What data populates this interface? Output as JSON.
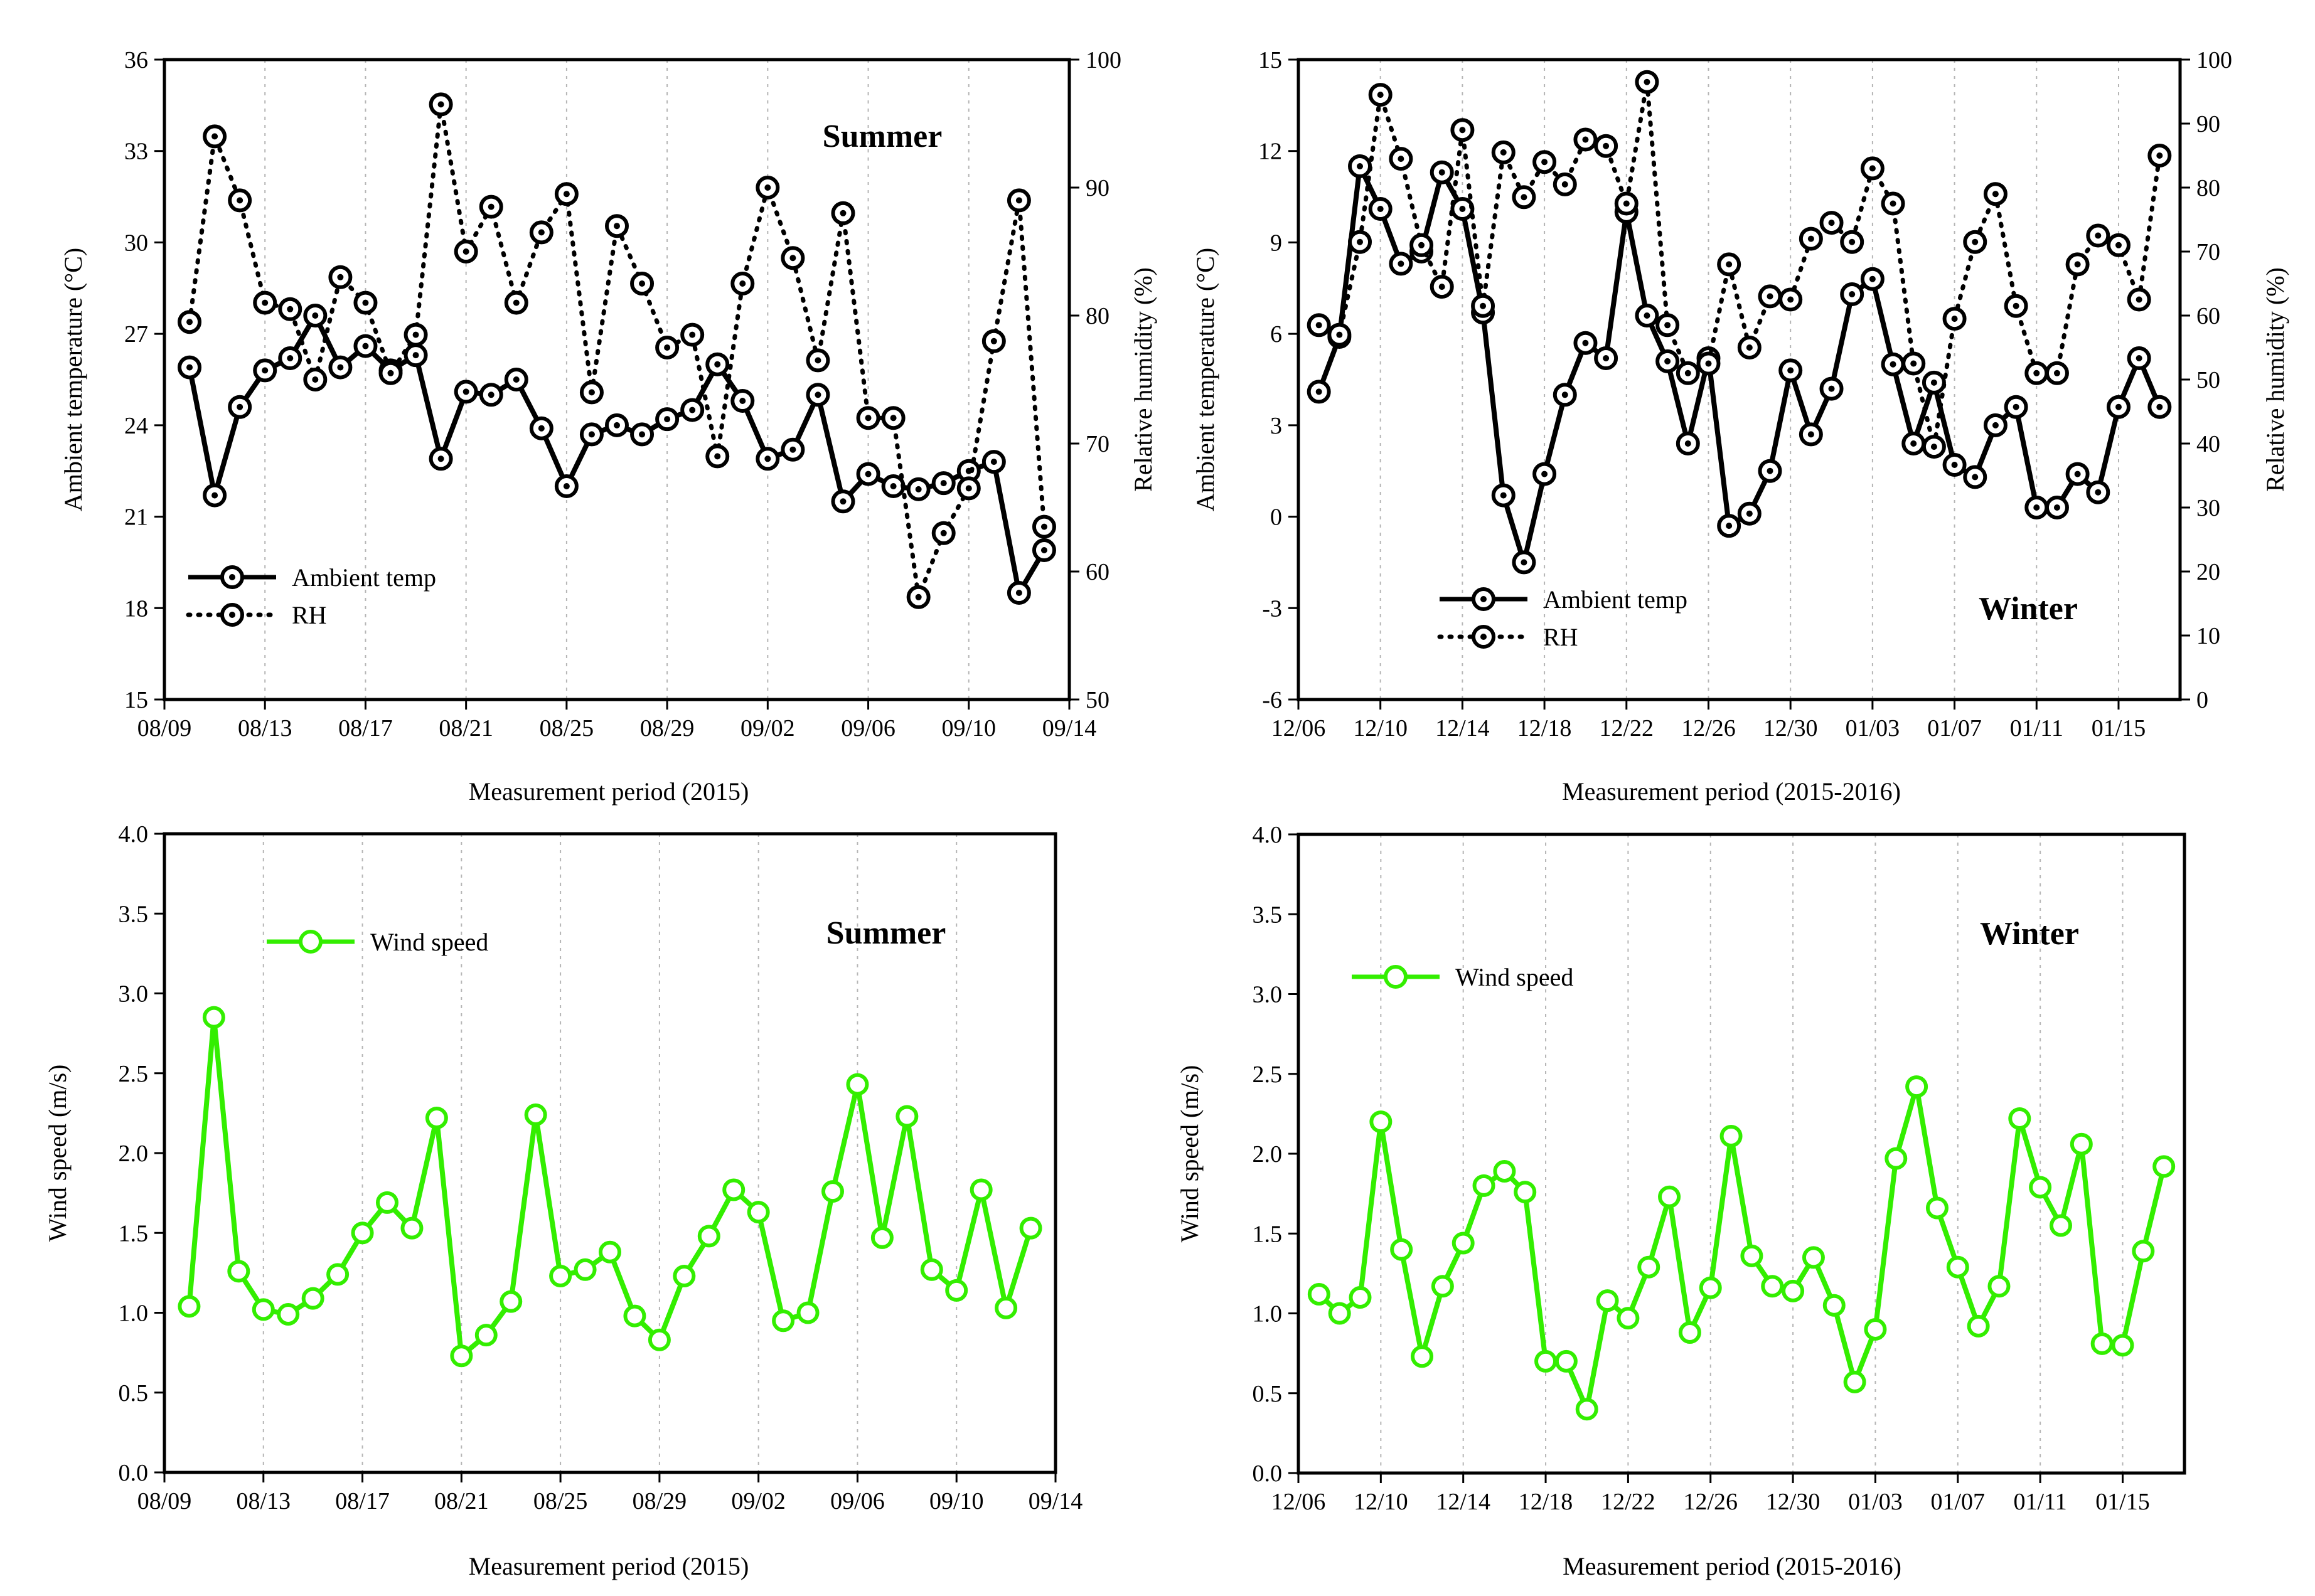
{
  "colors": {
    "temp": "#000000",
    "rh": "#000000",
    "wind": "#33ee00"
  },
  "chart_data": [
    {
      "type": "line",
      "title": "Summer",
      "xlabel": "Measurement period (2015)",
      "ylabel": "Ambient temperature (°C)",
      "y2label": "Relative humidity (%)",
      "x_tick_labels": [
        "08/09",
        "08/13",
        "08/17",
        "08/21",
        "08/25",
        "08/29",
        "09/02",
        "09/06",
        "09/10",
        "09/14"
      ],
      "y_ticks": [
        15,
        18,
        21,
        24,
        27,
        30,
        33,
        36
      ],
      "y2_ticks": [
        50,
        60,
        70,
        80,
        90,
        100
      ],
      "ylim": [
        15,
        36
      ],
      "y2lim": [
        50,
        100
      ],
      "legend": [
        "Ambient temp",
        "RH"
      ],
      "x": [
        1,
        2,
        3,
        4,
        5,
        6,
        7,
        8,
        9,
        10,
        11,
        12,
        13,
        14,
        15,
        16,
        17,
        18,
        19,
        20,
        21,
        22,
        23,
        24,
        25,
        26,
        27,
        28,
        29,
        30,
        31,
        32,
        33,
        34,
        35
      ],
      "series": [
        {
          "name": "Ambient temp",
          "axis": "left",
          "style": "solid",
          "values": [
            25.9,
            21.7,
            24.6,
            25.8,
            26.2,
            27.6,
            25.9,
            26.6,
            25.8,
            26.3,
            22.9,
            25.1,
            25.0,
            25.5,
            23.9,
            22.0,
            23.7,
            24.0,
            23.7,
            24.2,
            24.5,
            26.0,
            24.8,
            22.9,
            23.2,
            25.0,
            21.5,
            22.4,
            22.0,
            21.9,
            22.1,
            22.5,
            22.8,
            18.5,
            19.9
          ]
        },
        {
          "name": "RH",
          "axis": "right",
          "style": "dotted",
          "values": [
            79.5,
            94.0,
            89.0,
            81.0,
            80.5,
            75.0,
            83.0,
            81.0,
            75.5,
            78.5,
            96.5,
            85.0,
            88.5,
            81.0,
            86.5,
            89.5,
            74.0,
            87.0,
            82.5,
            77.5,
            78.5,
            69.0,
            82.5,
            90.0,
            84.5,
            76.5,
            88.0,
            72.0,
            72.0,
            58.0,
            63.0,
            66.5,
            78.0,
            89.0,
            63.5
          ]
        }
      ]
    },
    {
      "type": "line",
      "title": "Winter",
      "xlabel": "Measurement period (2015-2016)",
      "ylabel": "Ambient temperature (°C)",
      "y2label": "Relative humidity (%)",
      "x_tick_labels": [
        "12/06",
        "12/10",
        "12/14",
        "12/18",
        "12/22",
        "12/26",
        "12/30",
        "01/03",
        "01/07",
        "01/11",
        "01/15"
      ],
      "y_ticks": [
        -6,
        -3,
        0,
        3,
        6,
        9,
        12,
        15
      ],
      "y2_ticks": [
        0,
        10,
        20,
        30,
        40,
        50,
        60,
        70,
        80,
        90,
        100
      ],
      "ylim": [
        -6,
        15
      ],
      "y2lim": [
        0,
        100
      ],
      "legend": [
        "Ambient temp",
        "RH"
      ],
      "x": [
        1,
        2,
        3,
        4,
        5,
        6,
        7,
        8,
        9,
        10,
        11,
        12,
        13,
        14,
        15,
        16,
        17,
        18,
        19,
        20,
        21,
        22,
        23,
        24,
        25,
        26,
        27,
        28,
        29,
        30,
        31,
        32,
        33,
        34,
        35,
        36,
        37,
        38,
        39,
        40,
        41,
        42
      ],
      "series": [
        {
          "name": "Ambient temp",
          "axis": "left",
          "style": "solid",
          "values": [
            4.1,
            5.9,
            11.5,
            10.1,
            8.3,
            8.7,
            11.3,
            10.1,
            6.7,
            0.7,
            -1.5,
            1.4,
            4.0,
            5.7,
            5.2,
            10.0,
            6.6,
            5.1,
            2.4,
            5.2,
            -0.3,
            0.1,
            1.5,
            4.8,
            2.7,
            4.2,
            7.3,
            7.8,
            5.0,
            2.4,
            4.4,
            1.7,
            1.3,
            3.0,
            3.6,
            0.3,
            0.3,
            1.4,
            0.8,
            3.6,
            5.2,
            3.6
          ]
        },
        {
          "name": "RH",
          "axis": "right",
          "style": "dotted",
          "values": [
            58.5,
            57.0,
            71.5,
            94.5,
            84.5,
            71.0,
            64.5,
            89.0,
            61.5,
            85.5,
            78.5,
            84.0,
            80.5,
            87.5,
            86.5,
            77.5,
            96.5,
            58.5,
            51.0,
            52.5,
            68.0,
            55.0,
            63.0,
            62.5,
            72.0,
            74.5,
            71.5,
            83.0,
            77.5,
            52.5,
            39.5,
            59.5,
            71.5,
            79.0,
            61.5,
            51.0,
            51.0,
            68.0,
            72.5,
            71.0,
            62.5,
            85.0
          ]
        }
      ]
    },
    {
      "type": "line",
      "title": "Summer",
      "xlabel": "Measurement period (2015)",
      "ylabel": "Wind speed (m/s)",
      "x_tick_labels": [
        "08/09",
        "08/13",
        "08/17",
        "08/21",
        "08/25",
        "08/29",
        "09/02",
        "09/06",
        "09/10",
        "09/14"
      ],
      "y_ticks": [
        "0.0",
        "0.5",
        "1.0",
        "1.5",
        "2.0",
        "2.5",
        "3.0",
        "3.5",
        "4.0"
      ],
      "ylim": [
        0,
        4
      ],
      "legend": [
        "Wind speed"
      ],
      "x": [
        1,
        2,
        3,
        4,
        5,
        6,
        7,
        8,
        9,
        10,
        11,
        12,
        13,
        14,
        15,
        16,
        17,
        18,
        19,
        20,
        21,
        22,
        23,
        24,
        25,
        26,
        27,
        28,
        29,
        30,
        31,
        32,
        33,
        34,
        35
      ],
      "series": [
        {
          "name": "Wind speed",
          "axis": "left",
          "style": "solid",
          "values": [
            1.04,
            2.85,
            1.26,
            1.02,
            0.99,
            1.09,
            1.24,
            1.5,
            1.69,
            1.53,
            2.22,
            0.73,
            0.86,
            1.07,
            2.24,
            1.23,
            1.27,
            1.38,
            0.98,
            0.83,
            1.23,
            1.48,
            1.77,
            1.63,
            0.95,
            1.0,
            1.76,
            2.43,
            1.47,
            2.23,
            1.27,
            1.14,
            1.77,
            1.03,
            1.53
          ]
        }
      ]
    },
    {
      "type": "line",
      "title": "Winter",
      "xlabel": "Measurement period (2015-2016)",
      "ylabel": "Wind speed (m/s)",
      "x_tick_labels": [
        "12/06",
        "12/10",
        "12/14",
        "12/18",
        "12/22",
        "12/26",
        "12/30",
        "01/03",
        "01/07",
        "01/11",
        "01/15"
      ],
      "y_ticks": [
        "0.0",
        "0.5",
        "1.0",
        "1.5",
        "2.0",
        "2.5",
        "3.0",
        "3.5",
        "4.0"
      ],
      "ylim": [
        0,
        4
      ],
      "legend": [
        "Wind speed"
      ],
      "x": [
        1,
        2,
        3,
        4,
        5,
        6,
        7,
        8,
        9,
        10,
        11,
        12,
        13,
        14,
        15,
        16,
        17,
        18,
        19,
        20,
        21,
        22,
        23,
        24,
        25,
        26,
        27,
        28,
        29,
        30,
        31,
        32,
        33,
        34,
        35,
        36,
        37,
        38,
        39,
        40,
        41,
        42
      ],
      "series": [
        {
          "name": "Wind speed",
          "axis": "left",
          "style": "solid",
          "values": [
            1.12,
            1.0,
            1.1,
            2.2,
            1.4,
            0.73,
            1.17,
            1.44,
            1.8,
            1.89,
            1.76,
            0.7,
            0.7,
            0.4,
            1.08,
            0.97,
            1.29,
            1.73,
            0.88,
            1.16,
            2.11,
            1.36,
            1.17,
            1.14,
            1.35,
            1.05,
            0.57,
            0.9,
            1.97,
            2.42,
            1.66,
            1.29,
            0.92,
            1.17,
            2.22,
            1.79,
            1.55,
            2.06,
            0.81,
            0.8,
            1.39,
            1.92
          ]
        }
      ]
    }
  ]
}
